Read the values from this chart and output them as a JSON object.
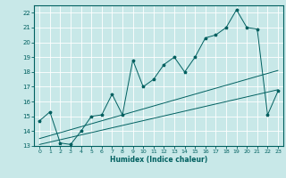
{
  "xlabel": "Humidex (Indice chaleur)",
  "bg_color": "#c8e8e8",
  "grid_color": "#ffffff",
  "line_color": "#006060",
  "xlim": [
    -0.5,
    23.5
  ],
  "ylim": [
    13,
    22.5
  ],
  "xticks": [
    0,
    1,
    2,
    3,
    4,
    5,
    6,
    7,
    8,
    9,
    10,
    11,
    12,
    13,
    14,
    15,
    16,
    17,
    18,
    19,
    20,
    21,
    22,
    23
  ],
  "yticks": [
    13,
    14,
    15,
    16,
    17,
    18,
    19,
    20,
    21,
    22
  ],
  "line1_x": [
    0,
    1,
    2,
    3,
    4,
    5,
    6,
    7,
    8,
    9,
    10,
    11,
    12,
    13,
    14,
    15,
    16,
    17,
    18,
    19,
    20,
    21,
    22,
    23
  ],
  "line1_y": [
    14.7,
    15.3,
    13.2,
    13.1,
    14.0,
    15.0,
    15.1,
    16.5,
    15.1,
    18.8,
    17.0,
    17.5,
    18.5,
    19.0,
    18.0,
    19.0,
    20.3,
    20.5,
    21.0,
    22.2,
    21.0,
    20.9,
    15.1,
    16.7
  ],
  "line2_x": [
    0,
    23
  ],
  "line2_y": [
    13.1,
    16.8
  ],
  "line3_x": [
    0,
    23
  ],
  "line3_y": [
    13.5,
    18.1
  ],
  "figwidth": 3.2,
  "figheight": 2.0,
  "dpi": 100
}
